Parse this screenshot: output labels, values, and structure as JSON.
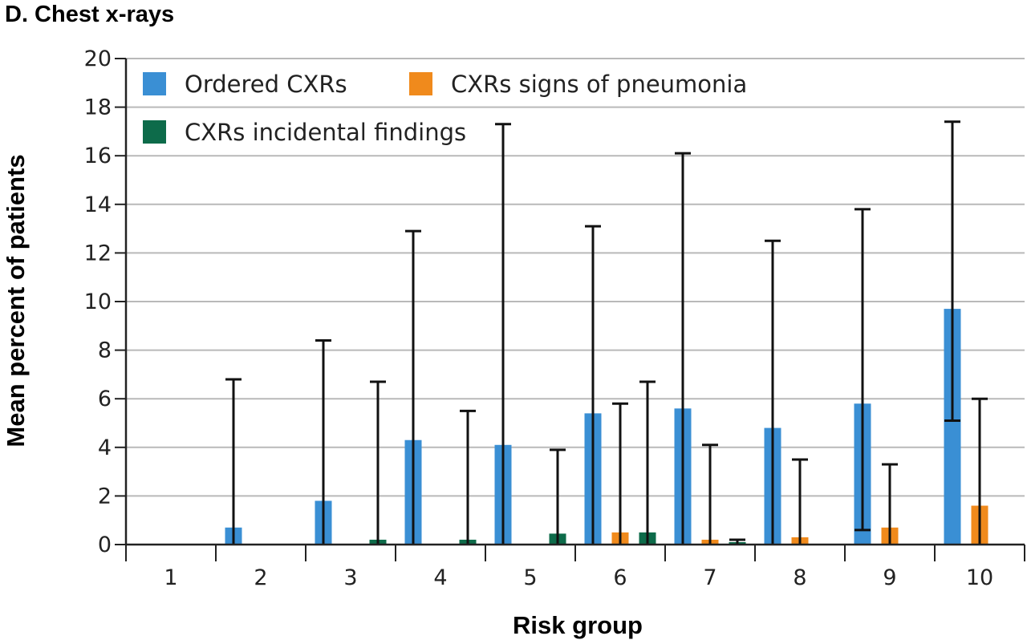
{
  "chart_data": {
    "type": "bar",
    "title": "D. Chest x-rays",
    "xlabel": "Risk group",
    "ylabel": "Mean percent of patients",
    "ylim": [
      0,
      20
    ],
    "yticks": [
      0,
      2,
      4,
      6,
      8,
      10,
      12,
      14,
      16,
      18,
      20
    ],
    "categories": [
      "1",
      "2",
      "3",
      "4",
      "5",
      "6",
      "7",
      "8",
      "9",
      "10"
    ],
    "grid": "horizontal",
    "legend_position": "top-left",
    "series": [
      {
        "name": "Ordered CXRs",
        "color": "#3a8fd4",
        "values": [
          0,
          0.7,
          1.8,
          4.3,
          4.1,
          5.4,
          5.6,
          4.8,
          5.8,
          9.7
        ],
        "error_upper": [
          null,
          6.8,
          8.4,
          12.9,
          17.3,
          13.1,
          16.1,
          12.5,
          13.8,
          17.4
        ],
        "error_lower": [
          null,
          null,
          null,
          null,
          null,
          null,
          null,
          null,
          0.6,
          5.1
        ]
      },
      {
        "name": "CXRs signs of pneumonia",
        "color": "#f08a1c",
        "values": [
          0,
          0,
          0,
          0,
          0,
          0.5,
          0.2,
          0.3,
          0.7,
          1.6
        ],
        "error_upper": [
          null,
          null,
          null,
          null,
          null,
          5.8,
          4.1,
          3.5,
          3.3,
          6.0
        ],
        "error_lower": [
          null,
          null,
          null,
          null,
          null,
          null,
          null,
          null,
          null,
          null
        ]
      },
      {
        "name": "CXRs incidental findings",
        "color": "#0d6b4a",
        "values": [
          0,
          0,
          0.2,
          0.2,
          0.45,
          0.5,
          0.1,
          0,
          0,
          0
        ],
        "error_upper": [
          null,
          null,
          6.7,
          5.5,
          3.9,
          6.7,
          0.2,
          null,
          null,
          null
        ],
        "error_lower": [
          null,
          null,
          null,
          null,
          null,
          null,
          null,
          null,
          null,
          null
        ]
      }
    ]
  }
}
